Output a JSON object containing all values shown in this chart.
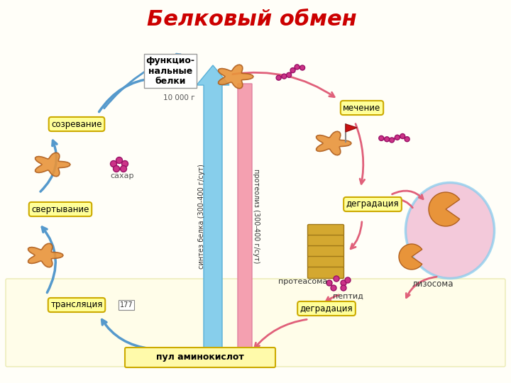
{
  "title": "Белковый обмен",
  "title_color": "#cc0000",
  "title_fontsize": 22,
  "bg_color": "#fffef8",
  "labels": {
    "functional_proteins": "функцио-\nнальные\nбелки",
    "functional_10000": "10 000 г",
    "sozrevanie": "созревание",
    "sahar": "сахар",
    "svertyvanie": "свертывание",
    "translyaciya": "трансляция",
    "sintez": "синтез белка (300-400 г/сут)",
    "proteoliz": "протеолиз (300-400 г/сут)",
    "mechenie": "мечение",
    "degradaciya_top": "деградация",
    "proteasoma": "протеасома",
    "peptid": "пептид",
    "degradaciya_bot": "деградация",
    "lizosoma": "лизосома",
    "pul": "пул аминокислот",
    "num177": "177"
  },
  "lc": {
    "yellow_bg": "#ffff99",
    "yellow_edge": "#ccaa00",
    "blue_arrow": "#87ceeb",
    "blue_dark": "#5599cc",
    "pink_arrow": "#f4a0b0",
    "pink_dark": "#e0607a",
    "orange": "#e8943a",
    "orange_dark": "#b06020",
    "magenta": "#cc3388",
    "magenta_dark": "#991166",
    "lysosome_fill": "#f0b8d0",
    "lysosome_edge": "#88ccee",
    "pacman": "#e8943a",
    "proteasome": "#d4a830",
    "red_flag": "#cc1111",
    "white": "#ffffff",
    "gray": "#888888",
    "dark": "#333333",
    "pul_bg": "#fffaaa",
    "pul_edge": "#ccaa00"
  }
}
